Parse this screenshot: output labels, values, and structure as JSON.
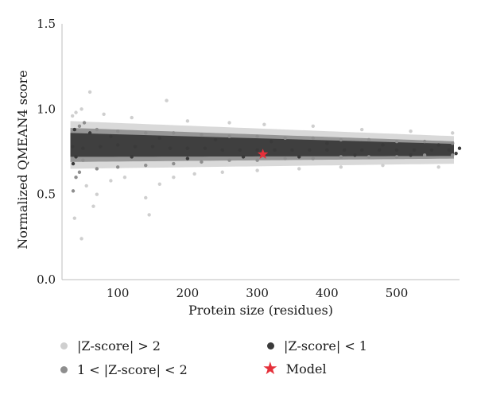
{
  "chart_data": {
    "type": "scatter",
    "title": "",
    "xlabel": "Protein size (residues)",
    "ylabel": "Normalized QMEAN4 score",
    "xlim": [
      20,
      590
    ],
    "ylim": [
      0.0,
      1.5
    ],
    "x_ticks": [
      100,
      200,
      300,
      400,
      500
    ],
    "y_ticks": [
      0.0,
      0.5,
      1.0,
      1.5
    ],
    "y_tick_labels": [
      "0.0",
      "0.5",
      "1.0",
      "1.5"
    ],
    "grid": false,
    "legend_position": "bottom",
    "series": [
      {
        "name": "|Z-score| > 2",
        "color": "#cfcfcf",
        "points": [
          [
            60,
            1.1
          ],
          [
            48,
            1.0
          ],
          [
            170,
            1.05
          ],
          [
            40,
            0.98
          ],
          [
            35,
            0.96
          ],
          [
            80,
            0.97
          ],
          [
            120,
            0.95
          ],
          [
            200,
            0.93
          ],
          [
            260,
            0.92
          ],
          [
            310,
            0.91
          ],
          [
            380,
            0.9
          ],
          [
            450,
            0.88
          ],
          [
            520,
            0.87
          ],
          [
            580,
            0.86
          ],
          [
            55,
            0.55
          ],
          [
            70,
            0.5
          ],
          [
            90,
            0.58
          ],
          [
            110,
            0.6
          ],
          [
            140,
            0.48
          ],
          [
            160,
            0.56
          ],
          [
            180,
            0.6
          ],
          [
            210,
            0.62
          ],
          [
            250,
            0.63
          ],
          [
            300,
            0.64
          ],
          [
            360,
            0.65
          ],
          [
            420,
            0.66
          ],
          [
            480,
            0.67
          ],
          [
            560,
            0.66
          ],
          [
            38,
            0.36
          ],
          [
            48,
            0.24
          ],
          [
            65,
            0.43
          ],
          [
            145,
            0.38
          ]
        ]
      },
      {
        "name": "1 < |Z-score| < 2",
        "color": "#8e8e8e",
        "points": [
          [
            45,
            0.9
          ],
          [
            70,
            0.88
          ],
          [
            100,
            0.87
          ],
          [
            140,
            0.86
          ],
          [
            180,
            0.86
          ],
          [
            220,
            0.85
          ],
          [
            260,
            0.84
          ],
          [
            300,
            0.84
          ],
          [
            340,
            0.83
          ],
          [
            380,
            0.83
          ],
          [
            420,
            0.82
          ],
          [
            460,
            0.82
          ],
          [
            500,
            0.81
          ],
          [
            540,
            0.81
          ],
          [
            580,
            0.8
          ],
          [
            45,
            0.63
          ],
          [
            70,
            0.65
          ],
          [
            100,
            0.66
          ],
          [
            140,
            0.67
          ],
          [
            180,
            0.68
          ],
          [
            220,
            0.69
          ],
          [
            260,
            0.7
          ],
          [
            300,
            0.7
          ],
          [
            340,
            0.71
          ],
          [
            380,
            0.71
          ],
          [
            420,
            0.72
          ],
          [
            460,
            0.72
          ],
          [
            500,
            0.72
          ],
          [
            540,
            0.73
          ],
          [
            580,
            0.73
          ],
          [
            36,
            0.52
          ],
          [
            40,
            0.6
          ],
          [
            50,
            0.7
          ],
          [
            52,
            0.92
          ]
        ]
      },
      {
        "name": "|Z-score| < 1",
        "color": "#3a3a3a",
        "points": [
          [
            35,
            0.78
          ],
          [
            50,
            0.77
          ],
          [
            75,
            0.78
          ],
          [
            100,
            0.79
          ],
          [
            125,
            0.78
          ],
          [
            150,
            0.78
          ],
          [
            175,
            0.77
          ],
          [
            200,
            0.77
          ],
          [
            225,
            0.77
          ],
          [
            250,
            0.76
          ],
          [
            275,
            0.76
          ],
          [
            300,
            0.76
          ],
          [
            325,
            0.76
          ],
          [
            350,
            0.76
          ],
          [
            375,
            0.76
          ],
          [
            400,
            0.76
          ],
          [
            425,
            0.76
          ],
          [
            450,
            0.76
          ],
          [
            475,
            0.76
          ],
          [
            500,
            0.76
          ],
          [
            525,
            0.76
          ],
          [
            550,
            0.76
          ],
          [
            575,
            0.76
          ],
          [
            590,
            0.77
          ],
          [
            40,
            0.72
          ],
          [
            60,
            0.86
          ],
          [
            90,
            0.84
          ],
          [
            120,
            0.72
          ],
          [
            160,
            0.83
          ],
          [
            200,
            0.71
          ],
          [
            240,
            0.82
          ],
          [
            280,
            0.72
          ],
          [
            320,
            0.81
          ],
          [
            360,
            0.72
          ],
          [
            400,
            0.8
          ],
          [
            440,
            0.73
          ],
          [
            480,
            0.79
          ],
          [
            520,
            0.73
          ],
          [
            560,
            0.79
          ],
          [
            585,
            0.74
          ],
          [
            36,
            0.68
          ],
          [
            38,
            0.88
          ]
        ]
      },
      {
        "name": "Model",
        "color": "#e5303a",
        "marker": "star",
        "points": [
          [
            308,
            0.735
          ]
        ]
      }
    ]
  },
  "legend": {
    "items": [
      {
        "label": "|Z-score| > 2",
        "color": "#cfcfcf",
        "marker": "dot"
      },
      {
        "label": "1 < |Z-score| < 2",
        "color": "#8e8e8e",
        "marker": "dot"
      },
      {
        "label": "|Z-score| < 1",
        "color": "#3a3a3a",
        "marker": "dot"
      },
      {
        "label": "Model",
        "color": "#e5303a",
        "marker": "star"
      }
    ]
  }
}
